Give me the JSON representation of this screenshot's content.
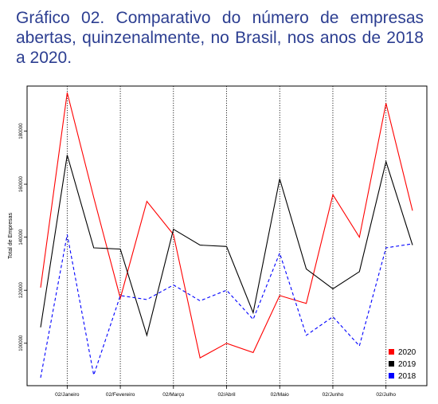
{
  "page": {
    "title": "Gráfico 02. Comparativo do número de empresas abertas, quinzenalmente, no Brasil, nos anos de 2018 a 2020."
  },
  "chart_data": {
    "type": "line",
    "title": "Gráfico 02. Comparativo do número de empresas abertas, quinzenalmente, no Brasil, nos anos de 2018 a 2020.",
    "xlabel": "",
    "ylabel": "Total de Empresas",
    "ylim": [
      84000,
      197000
    ],
    "x": [
      1,
      2,
      3,
      4,
      5,
      6,
      7,
      8,
      9,
      10,
      11,
      12,
      13,
      14,
      15
    ],
    "x_ticks": [
      {
        "label": "02/Janeiro",
        "x": 2
      },
      {
        "label": "02/Fevereiro",
        "x": 4
      },
      {
        "label": "02/Março",
        "x": 6
      },
      {
        "label": "02/Abril",
        "x": 8
      },
      {
        "label": "02/Maio",
        "x": 10
      },
      {
        "label": "02/Junho",
        "x": 12
      },
      {
        "label": "02/Julho",
        "x": 14
      }
    ],
    "y_ticks": [
      100000,
      120000,
      140000,
      160000,
      180000
    ],
    "vertical_guides": [
      2,
      4,
      6,
      8,
      10,
      12,
      14
    ],
    "legend_position": "bottom-right",
    "series": [
      {
        "name": "2020",
        "color": "#ff0000",
        "dash": "solid",
        "values": [
          121000,
          194500,
          155000,
          117000,
          153500,
          141000,
          94500,
          100000,
          96500,
          118000,
          115000,
          156000,
          140000,
          190500,
          150000
        ]
      },
      {
        "name": "2019",
        "color": "#000000",
        "dash": "solid",
        "values": [
          106000,
          171000,
          136000,
          135500,
          103000,
          143000,
          137000,
          136500,
          111500,
          162000,
          128000,
          120500,
          127000,
          168500,
          137000
        ]
      },
      {
        "name": "2018",
        "color": "#0000ff",
        "dash": "dashed",
        "values": [
          87000,
          141000,
          88000,
          118000,
          116500,
          122000,
          116000,
          120000,
          109000,
          134000,
          103000,
          110000,
          99000,
          136000,
          137500
        ]
      }
    ]
  }
}
